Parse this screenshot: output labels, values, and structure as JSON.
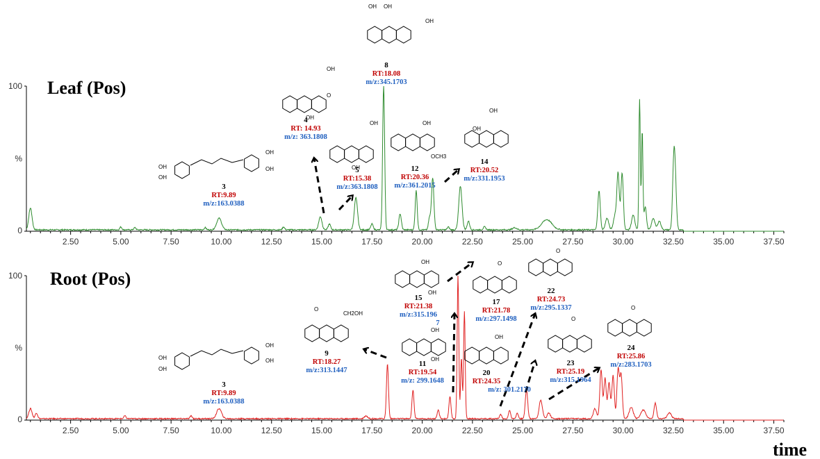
{
  "chart_data": [
    {
      "type": "line",
      "title": "Leaf (Pos)",
      "color": "#2e8b2e",
      "yticks": [
        "0",
        "%",
        "100"
      ],
      "ylim": [
        0,
        100
      ],
      "xlim": [
        0.3,
        38.0
      ],
      "xticks": [
        "2.50",
        "5.00",
        "7.50",
        "10.00",
        "12.50",
        "15.00",
        "17.50",
        "20.00",
        "22.50",
        "25.00",
        "27.50",
        "30.00",
        "32.50",
        "35.00",
        "37.50"
      ],
      "peaks": [
        {
          "x": 0.5,
          "y": 15,
          "w": 0.08
        },
        {
          "x": 5.0,
          "y": 2,
          "w": 0.05
        },
        {
          "x": 5.7,
          "y": 1.5,
          "w": 0.05
        },
        {
          "x": 9.2,
          "y": 1.5,
          "w": 0.05
        },
        {
          "x": 9.89,
          "y": 8,
          "w": 0.12
        },
        {
          "x": 13.1,
          "y": 2,
          "w": 0.05
        },
        {
          "x": 14.93,
          "y": 9,
          "w": 0.08
        },
        {
          "x": 15.38,
          "y": 4,
          "w": 0.06
        },
        {
          "x": 16.7,
          "y": 22,
          "w": 0.08
        },
        {
          "x": 17.5,
          "y": 4,
          "w": 0.06
        },
        {
          "x": 18.08,
          "y": 100,
          "w": 0.05
        },
        {
          "x": 18.9,
          "y": 11,
          "w": 0.06
        },
        {
          "x": 19.7,
          "y": 27,
          "w": 0.05
        },
        {
          "x": 20.36,
          "y": 8,
          "w": 0.05
        },
        {
          "x": 20.52,
          "y": 36,
          "w": 0.06
        },
        {
          "x": 21.3,
          "y": 2,
          "w": 0.05
        },
        {
          "x": 21.9,
          "y": 30,
          "w": 0.08
        },
        {
          "x": 22.3,
          "y": 6,
          "w": 0.06
        },
        {
          "x": 23.1,
          "y": 2,
          "w": 0.06
        },
        {
          "x": 24.6,
          "y": 1.5,
          "w": 0.1
        },
        {
          "x": 26.2,
          "y": 7,
          "w": 0.25
        },
        {
          "x": 28.8,
          "y": 27,
          "w": 0.06
        },
        {
          "x": 29.2,
          "y": 8,
          "w": 0.08
        },
        {
          "x": 29.6,
          "y": 10,
          "w": 0.08
        },
        {
          "x": 29.75,
          "y": 38,
          "w": 0.06
        },
        {
          "x": 29.95,
          "y": 39,
          "w": 0.06
        },
        {
          "x": 30.5,
          "y": 10,
          "w": 0.08
        },
        {
          "x": 30.82,
          "y": 90,
          "w": 0.035
        },
        {
          "x": 30.95,
          "y": 68,
          "w": 0.035
        },
        {
          "x": 31.1,
          "y": 16,
          "w": 0.06
        },
        {
          "x": 31.5,
          "y": 8,
          "w": 0.08
        },
        {
          "x": 31.8,
          "y": 6,
          "w": 0.08
        },
        {
          "x": 32.52,
          "y": 44,
          "w": 0.06
        },
        {
          "x": 32.6,
          "y": 26,
          "w": 0.06
        }
      ],
      "end_x": 33.0
    },
    {
      "type": "line",
      "title": "Root (Pos)",
      "color": "#e02020",
      "yticks": [
        "0",
        "%",
        "100"
      ],
      "ylim": [
        0,
        100
      ],
      "xlim": [
        0.3,
        38.0
      ],
      "xticks": [
        "2.50",
        "5.00",
        "7.50",
        "10.00",
        "12.50",
        "15.00",
        "17.50",
        "20.00",
        "22.50",
        "25.00",
        "27.50",
        "30.00",
        "32.50",
        "35.00",
        "37.50"
      ],
      "peaks": [
        {
          "x": 0.5,
          "y": 7,
          "w": 0.08
        },
        {
          "x": 0.8,
          "y": 4,
          "w": 0.06
        },
        {
          "x": 5.2,
          "y": 2,
          "w": 0.05
        },
        {
          "x": 8.5,
          "y": 2,
          "w": 0.05
        },
        {
          "x": 9.89,
          "y": 7,
          "w": 0.12
        },
        {
          "x": 17.2,
          "y": 2,
          "w": 0.08
        },
        {
          "x": 18.27,
          "y": 38,
          "w": 0.05
        },
        {
          "x": 19.54,
          "y": 20,
          "w": 0.05
        },
        {
          "x": 20.8,
          "y": 6,
          "w": 0.05
        },
        {
          "x": 21.38,
          "y": 15,
          "w": 0.05
        },
        {
          "x": 21.78,
          "y": 100,
          "w": 0.04
        },
        {
          "x": 21.95,
          "y": 42,
          "w": 0.04
        },
        {
          "x": 22.1,
          "y": 74,
          "w": 0.04
        },
        {
          "x": 23.9,
          "y": 3,
          "w": 0.05
        },
        {
          "x": 24.35,
          "y": 6,
          "w": 0.05
        },
        {
          "x": 24.73,
          "y": 4,
          "w": 0.05
        },
        {
          "x": 25.19,
          "y": 20,
          "w": 0.06
        },
        {
          "x": 25.9,
          "y": 13,
          "w": 0.08
        },
        {
          "x": 26.3,
          "y": 4,
          "w": 0.08
        },
        {
          "x": 28.6,
          "y": 7,
          "w": 0.08
        },
        {
          "x": 28.9,
          "y": 34,
          "w": 0.06
        },
        {
          "x": 29.1,
          "y": 28,
          "w": 0.06
        },
        {
          "x": 29.3,
          "y": 25,
          "w": 0.06
        },
        {
          "x": 29.5,
          "y": 30,
          "w": 0.06
        },
        {
          "x": 29.75,
          "y": 34,
          "w": 0.06
        },
        {
          "x": 29.9,
          "y": 30,
          "w": 0.06
        },
        {
          "x": 30.4,
          "y": 8,
          "w": 0.1
        },
        {
          "x": 31.0,
          "y": 6,
          "w": 0.12
        },
        {
          "x": 31.6,
          "y": 11,
          "w": 0.06
        },
        {
          "x": 32.3,
          "y": 4,
          "w": 0.1
        }
      ],
      "end_x": 33.0
    }
  ],
  "x_axis_label": "time",
  "annotations_leaf": [
    {
      "num": "3",
      "rt": "RT:9.89",
      "mz": "m/z:163.0388"
    },
    {
      "num": "4",
      "rt": "RT: 14.93",
      "mz": "m/z: 363.1808"
    },
    {
      "num": "5",
      "rt": "RT:15.38",
      "mz": "m/z:363.1808"
    },
    {
      "num": "8",
      "rt": "RT:18.08",
      "mz": "m/z:345.1703"
    },
    {
      "num": "12",
      "rt": "RT:20.36",
      "mz": "m/z:361.2015"
    },
    {
      "num": "14",
      "rt": "RT:20.52",
      "mz": "m/z:331.1953"
    }
  ],
  "annotations_root": [
    {
      "num": "3",
      "rt": "RT:9.89",
      "mz": "m/z:163.0388"
    },
    {
      "num": "9",
      "rt": "RT:18.27",
      "mz": "m/z:313.1447"
    },
    {
      "num": "11",
      "rt": "RT:19.54",
      "mz": "m/z: 299.1648"
    },
    {
      "num": "15",
      "rt": "RT:21.38",
      "mz": "m/z:315.196"
    },
    {
      "num": "17",
      "rt": "RT:21.78",
      "mz": "m/z:297.1498"
    },
    {
      "num": "20",
      "rt": "RT:24.35",
      "mz": "m/z: 301.2170"
    },
    {
      "num": "22",
      "rt": "RT:24.73",
      "mz": "m/z:295.1337"
    },
    {
      "num": "23",
      "rt": "RT:25.19",
      "mz": "m/z:315.1964"
    },
    {
      "num": "24",
      "rt": "RT:25.86",
      "mz": "m/z:283.1703"
    }
  ],
  "extra_label_root_15": "7",
  "structure_labels": {
    "oh": "OH",
    "o": "O",
    "och3": "OCH3",
    "ch2oh": "CH2OH"
  }
}
